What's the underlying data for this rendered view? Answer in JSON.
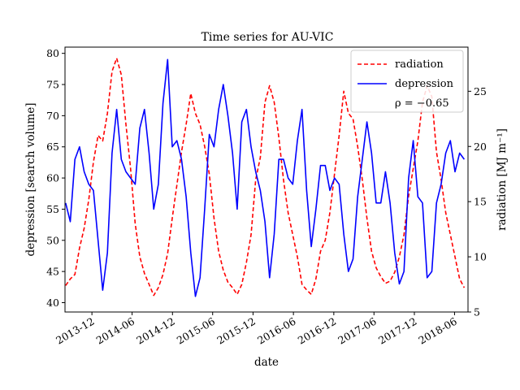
{
  "chart_data": {
    "type": "line",
    "title": "Time series for AU-VIC",
    "xlabel": "date",
    "ylabel_left": "depression [search volume]",
    "ylabel_right": "radiation [MJ m⁻¹]",
    "xlim": [
      "2013-08-01",
      "2018-08-01"
    ],
    "ylim_left": [
      38.5,
      81
    ],
    "ylim_right": [
      5,
      29
    ],
    "x_tick_labels": [
      "2013-12",
      "2014-06",
      "2014-12",
      "2015-06",
      "2015-12",
      "2016-06",
      "2016-12",
      "2017-06",
      "2017-12",
      "2018-06"
    ],
    "y_left_ticks": [
      40,
      45,
      50,
      55,
      60,
      65,
      70,
      75,
      80
    ],
    "y_right_ticks": [
      5,
      10,
      15,
      20,
      25
    ],
    "grid": false,
    "legend": {
      "position": "top-right",
      "entries": [
        "radiation",
        "depression"
      ]
    },
    "annotation": "ρ = −0.65",
    "colors": {
      "radiation": "#ff0000",
      "depression": "#0000ff"
    },
    "series": [
      {
        "name": "radiation",
        "axis": "right",
        "style": "dashed",
        "x": [
          "2013-08-04",
          "2013-08-25",
          "2013-09-15",
          "2013-10-06",
          "2013-10-27",
          "2013-11-17",
          "2013-12-08",
          "2013-12-29",
          "2014-01-19",
          "2014-02-09",
          "2014-03-02",
          "2014-03-23",
          "2014-04-13",
          "2014-05-04",
          "2014-05-25",
          "2014-06-15",
          "2014-07-06",
          "2014-07-27",
          "2014-08-17",
          "2014-09-07",
          "2014-09-28",
          "2014-10-19",
          "2014-11-09",
          "2014-11-30",
          "2014-12-21",
          "2015-01-11",
          "2015-02-01",
          "2015-02-22",
          "2015-03-15",
          "2015-04-05",
          "2015-04-26",
          "2015-05-17",
          "2015-06-07",
          "2015-06-28",
          "2015-07-19",
          "2015-08-09",
          "2015-08-30",
          "2015-09-20",
          "2015-10-11",
          "2015-11-01",
          "2015-11-22",
          "2015-12-13",
          "2016-01-03",
          "2016-01-24",
          "2016-02-14",
          "2016-03-06",
          "2016-03-27",
          "2016-04-17",
          "2016-05-08",
          "2016-05-29",
          "2016-06-19",
          "2016-07-10",
          "2016-07-31",
          "2016-08-21",
          "2016-09-11",
          "2016-10-02",
          "2016-10-23",
          "2016-11-13",
          "2016-12-04",
          "2016-12-25",
          "2017-01-15",
          "2017-02-05",
          "2017-02-26",
          "2017-03-19",
          "2017-04-09",
          "2017-04-30",
          "2017-05-21",
          "2017-06-11",
          "2017-07-02",
          "2017-07-23",
          "2017-08-13",
          "2017-09-03",
          "2017-09-24",
          "2017-10-15",
          "2017-11-05",
          "2017-11-26",
          "2017-12-17",
          "2018-01-07",
          "2018-01-28",
          "2018-02-18",
          "2018-03-11",
          "2018-04-01",
          "2018-04-22",
          "2018-05-13",
          "2018-06-03",
          "2018-06-24",
          "2018-07-15"
        ],
        "values": [
          7.4,
          8.0,
          8.4,
          10.8,
          12.6,
          15.2,
          18.6,
          21.0,
          20.5,
          23.0,
          26.8,
          28.0,
          26.5,
          22.0,
          18.0,
          13.0,
          10.0,
          8.5,
          7.5,
          6.5,
          7.2,
          8.4,
          10.3,
          13.5,
          16.5,
          19.5,
          22.0,
          24.8,
          23.0,
          22.0,
          20.0,
          17.5,
          13.5,
          10.5,
          8.8,
          7.7,
          7.2,
          6.6,
          7.5,
          9.5,
          12.0,
          17.0,
          19.0,
          24.0,
          25.5,
          24.0,
          20.8,
          17.0,
          14.0,
          12.0,
          10.0,
          7.5,
          7.0,
          6.6,
          8.0,
          10.5,
          11.5,
          14.0,
          17.5,
          21.0,
          25.0,
          23.0,
          22.5,
          20.0,
          17.0,
          13.5,
          10.5,
          9.0,
          8.2,
          7.6,
          7.8,
          8.6,
          10.0,
          12.0,
          15.5,
          18.0,
          20.5,
          24.0,
          25.5,
          24.5,
          19.5,
          17.0,
          14.0,
          12.0,
          10.0,
          8.0,
          7.2
        ]
      },
      {
        "name": "depression",
        "axis": "left",
        "style": "solid",
        "x": [
          "2013-08-04",
          "2013-08-25",
          "2013-09-15",
          "2013-10-06",
          "2013-10-27",
          "2013-11-17",
          "2013-12-08",
          "2013-12-29",
          "2014-01-19",
          "2014-02-09",
          "2014-03-02",
          "2014-03-23",
          "2014-04-13",
          "2014-05-04",
          "2014-05-25",
          "2014-06-15",
          "2014-07-06",
          "2014-07-27",
          "2014-08-17",
          "2014-09-07",
          "2014-09-28",
          "2014-10-19",
          "2014-11-09",
          "2014-11-30",
          "2014-12-21",
          "2015-01-11",
          "2015-02-01",
          "2015-02-22",
          "2015-03-15",
          "2015-04-05",
          "2015-04-26",
          "2015-05-17",
          "2015-06-07",
          "2015-06-28",
          "2015-07-19",
          "2015-08-09",
          "2015-08-30",
          "2015-09-20",
          "2015-10-11",
          "2015-11-01",
          "2015-11-22",
          "2015-12-13",
          "2016-01-03",
          "2016-01-24",
          "2016-02-14",
          "2016-03-06",
          "2016-03-27",
          "2016-04-17",
          "2016-05-08",
          "2016-05-29",
          "2016-06-19",
          "2016-07-10",
          "2016-07-31",
          "2016-08-21",
          "2016-09-11",
          "2016-10-02",
          "2016-10-23",
          "2016-11-13",
          "2016-12-04",
          "2016-12-25",
          "2017-01-15",
          "2017-02-05",
          "2017-02-26",
          "2017-03-19",
          "2017-04-09",
          "2017-04-30",
          "2017-05-21",
          "2017-06-11",
          "2017-07-02",
          "2017-07-23",
          "2017-08-13",
          "2017-09-03",
          "2017-09-24",
          "2017-10-15",
          "2017-11-05",
          "2017-11-26",
          "2017-12-17",
          "2018-01-07",
          "2018-01-28",
          "2018-02-18",
          "2018-03-11",
          "2018-04-01",
          "2018-04-22",
          "2018-05-13",
          "2018-06-03",
          "2018-06-24",
          "2018-07-15"
        ],
        "values": [
          56,
          53,
          63,
          65,
          61,
          59,
          58,
          50,
          42,
          48,
          64,
          71,
          63,
          61,
          60,
          59,
          68,
          71,
          64,
          55,
          59,
          72,
          79,
          65,
          66,
          63,
          57,
          48,
          41,
          44,
          55,
          67,
          65,
          71,
          75,
          70,
          64,
          55,
          69,
          71,
          65,
          61,
          58,
          53,
          44,
          51,
          63,
          63,
          60,
          59,
          66,
          71,
          58,
          49,
          55,
          62,
          62,
          58,
          60,
          59,
          51,
          45,
          47,
          57,
          63,
          69,
          64,
          56,
          56,
          61,
          56,
          48,
          43,
          45,
          60,
          66,
          57,
          56,
          44,
          45,
          56,
          59,
          64,
          66,
          61,
          64,
          63
        ]
      }
    ]
  }
}
